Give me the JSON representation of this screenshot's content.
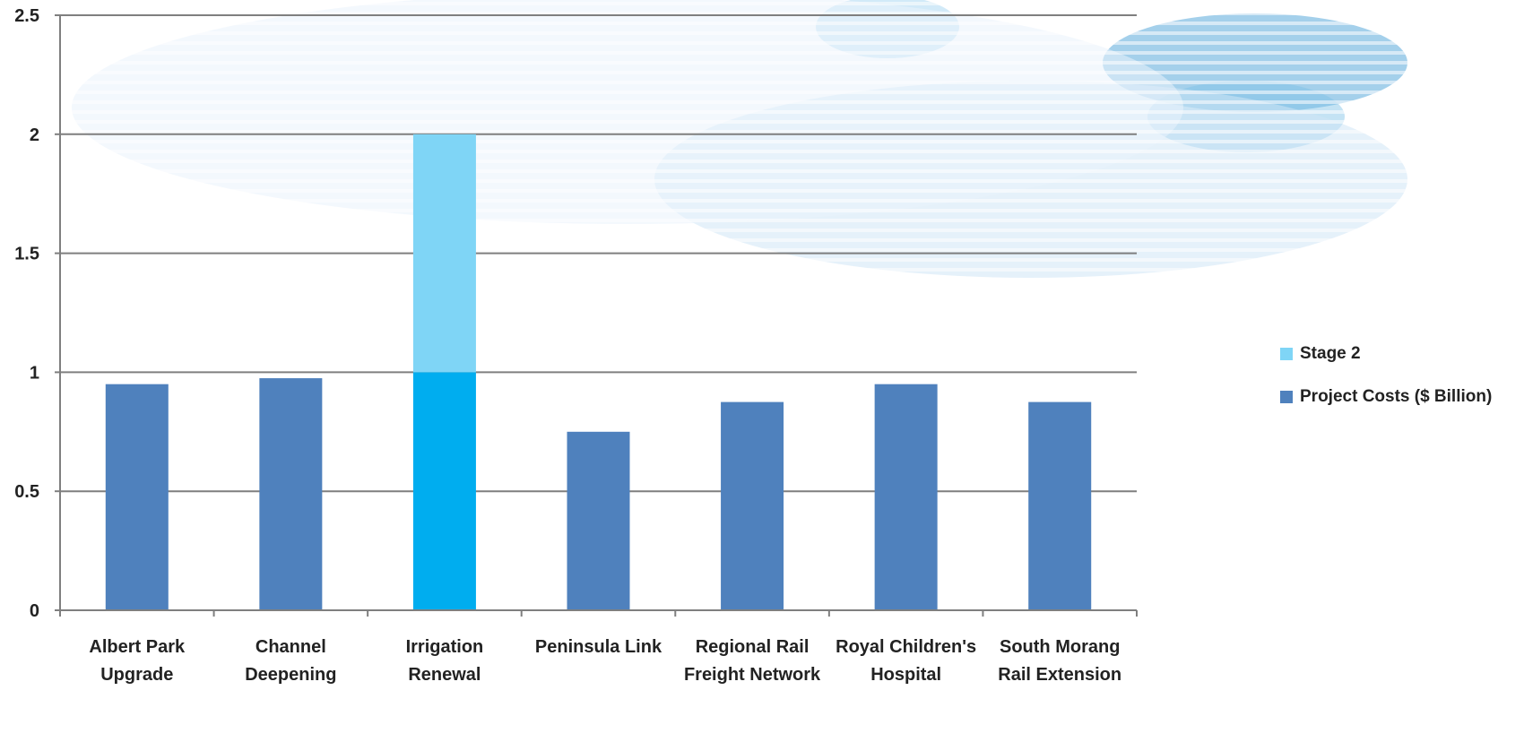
{
  "colors": {
    "project_costs": "#4f81bd",
    "irrigation_base": "#00adef",
    "stage2": "#7fd5f6",
    "gridline": "#7f7f7f",
    "axis": "#7f7f7f"
  },
  "legend": {
    "items": [
      {
        "label": "Stage 2",
        "series": "stage2"
      },
      {
        "label": "Project Costs ($ Billion)",
        "series": "project_costs"
      }
    ]
  },
  "chart_data": {
    "type": "bar",
    "stacked": true,
    "categories": [
      [
        "Albert Park",
        "Upgrade"
      ],
      [
        "Channel",
        "Deepening"
      ],
      [
        "Irrigation",
        "Renewal"
      ],
      [
        "Peninsula Link"
      ],
      [
        "Regional Rail",
        "Freight Network"
      ],
      [
        "Royal Children's",
        "Hospital"
      ],
      [
        "South Morang",
        "Rail Extension"
      ]
    ],
    "series": [
      {
        "name": "Project Costs ($ Billion)",
        "key": "project_costs",
        "values": [
          0.95,
          0.975,
          1.0,
          0.75,
          0.875,
          0.95,
          0.875
        ]
      },
      {
        "name": "Stage 2",
        "key": "stage2",
        "values": [
          0,
          0,
          1.0,
          0,
          0,
          0,
          0
        ]
      }
    ],
    "ylim": [
      0,
      2.5
    ],
    "yticks": [
      0,
      0.5,
      1,
      1.5,
      2,
      2.5
    ],
    "ytick_labels": [
      "0",
      "0.5",
      "1",
      "1.5",
      "2",
      "2.5"
    ],
    "grid": true,
    "legend_position": "right"
  }
}
